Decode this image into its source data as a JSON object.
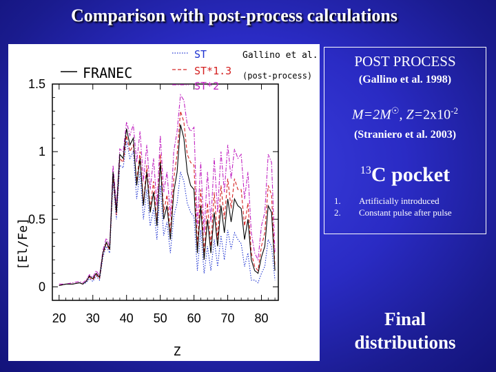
{
  "slide": {
    "title": "Comparison with post-process calculations",
    "info": {
      "post_process": "POST PROCESS",
      "post_process_ref": "(Gallino et al. 1998)",
      "model_mass": "M=2M",
      "sun_symbol": "☉",
      "model_z_label": ", Z=",
      "model_z_value": "2x10",
      "model_z_exp": "-2",
      "model_ref": "(Straniero et al. 2003)",
      "pocket_sup": "13",
      "pocket_label": "C  pocket",
      "items": [
        {
          "num": "1.",
          "text": "Artificially introduced"
        },
        {
          "num": "2.",
          "text": "Constant pulse after pulse"
        }
      ]
    },
    "final_line1": "Final",
    "final_line2": "distributions"
  },
  "chart_data": {
    "type": "line",
    "xlabel": "Z",
    "ylabel": "[El/Fe]",
    "xlim": [
      18,
      85
    ],
    "ylim": [
      -0.1,
      1.5
    ],
    "xticks": [
      20,
      30,
      40,
      50,
      60,
      70,
      80
    ],
    "yticks": [
      0,
      0.5,
      1,
      1.5
    ],
    "ytick_labels": [
      "0",
      "0.5",
      "1",
      "1.5"
    ],
    "legend": {
      "franec_label": "FRANEC",
      "group_label": "Gallino et al.",
      "group_sub": "(post-process)",
      "placement": "top"
    },
    "series": [
      {
        "name": "FRANEC",
        "color": "#000000",
        "dash": "solid",
        "points": [
          [
            20,
            0.01
          ],
          [
            22,
            0.02
          ],
          [
            24,
            0.02
          ],
          [
            26,
            0.03
          ],
          [
            27,
            0.02
          ],
          [
            28,
            0.04
          ],
          [
            29,
            0.08
          ],
          [
            30,
            0.06
          ],
          [
            31,
            0.1
          ],
          [
            32,
            0.07
          ],
          [
            33,
            0.25
          ],
          [
            34,
            0.33
          ],
          [
            35,
            0.28
          ],
          [
            36,
            0.85
          ],
          [
            37,
            0.55
          ],
          [
            38,
            0.98
          ],
          [
            39,
            0.95
          ],
          [
            40,
            1.17
          ],
          [
            41,
            1.05
          ],
          [
            42,
            1.1
          ],
          [
            43,
            0.75
          ],
          [
            44,
            0.95
          ],
          [
            45,
            0.6
          ],
          [
            46,
            0.85
          ],
          [
            47,
            0.55
          ],
          [
            48,
            0.7
          ],
          [
            49,
            0.45
          ],
          [
            50,
            0.92
          ],
          [
            51,
            0.5
          ],
          [
            52,
            0.6
          ],
          [
            53,
            0.35
          ],
          [
            54,
            0.7
          ],
          [
            55,
            0.85
          ],
          [
            56,
            1.2
          ],
          [
            57,
            1.1
          ],
          [
            58,
            0.85
          ],
          [
            59,
            0.75
          ],
          [
            60,
            0.72
          ],
          [
            61,
            0.25
          ],
          [
            62,
            0.6
          ],
          [
            63,
            0.2
          ],
          [
            64,
            0.5
          ],
          [
            65,
            0.25
          ],
          [
            66,
            0.55
          ],
          [
            67,
            0.3
          ],
          [
            68,
            0.6
          ],
          [
            69,
            0.4
          ],
          [
            70,
            0.65
          ],
          [
            71,
            0.48
          ],
          [
            72,
            0.65
          ],
          [
            73,
            0.6
          ],
          [
            74,
            0.58
          ],
          [
            75,
            0.35
          ],
          [
            76,
            0.5
          ],
          [
            77,
            0.2
          ],
          [
            78,
            0.12
          ],
          [
            79,
            0.1
          ],
          [
            80,
            0.22
          ],
          [
            81,
            0.3
          ],
          [
            82,
            0.6
          ],
          [
            83,
            0.55
          ],
          [
            84,
            0.12
          ]
        ]
      },
      {
        "name": "ST",
        "color": "#1a2fd0",
        "dash": "dot",
        "points": [
          [
            20,
            0.01
          ],
          [
            22,
            0.02
          ],
          [
            24,
            0.02
          ],
          [
            26,
            0.03
          ],
          [
            27,
            0.02
          ],
          [
            28,
            0.03
          ],
          [
            29,
            0.06
          ],
          [
            30,
            0.04
          ],
          [
            31,
            0.08
          ],
          [
            32,
            0.05
          ],
          [
            33,
            0.22
          ],
          [
            34,
            0.3
          ],
          [
            35,
            0.25
          ],
          [
            36,
            0.78
          ],
          [
            37,
            0.5
          ],
          [
            38,
            0.9
          ],
          [
            39,
            0.88
          ],
          [
            40,
            1.08
          ],
          [
            41,
            0.95
          ],
          [
            42,
            1.0
          ],
          [
            43,
            0.65
          ],
          [
            44,
            0.85
          ],
          [
            45,
            0.5
          ],
          [
            46,
            0.72
          ],
          [
            47,
            0.45
          ],
          [
            48,
            0.58
          ],
          [
            49,
            0.35
          ],
          [
            50,
            0.75
          ],
          [
            51,
            0.38
          ],
          [
            52,
            0.48
          ],
          [
            53,
            0.25
          ],
          [
            54,
            0.52
          ],
          [
            55,
            0.62
          ],
          [
            56,
            0.85
          ],
          [
            57,
            0.78
          ],
          [
            58,
            0.62
          ],
          [
            59,
            0.55
          ],
          [
            60,
            0.52
          ],
          [
            61,
            0.12
          ],
          [
            62,
            0.42
          ],
          [
            63,
            0.1
          ],
          [
            64,
            0.3
          ],
          [
            65,
            0.12
          ],
          [
            66,
            0.35
          ],
          [
            67,
            0.15
          ],
          [
            68,
            0.38
          ],
          [
            69,
            0.2
          ],
          [
            70,
            0.42
          ],
          [
            71,
            0.28
          ],
          [
            72,
            0.4
          ],
          [
            73,
            0.35
          ],
          [
            74,
            0.32
          ],
          [
            75,
            0.15
          ],
          [
            76,
            0.25
          ],
          [
            77,
            0.05
          ],
          [
            78,
            0.05
          ],
          [
            79,
            0.03
          ],
          [
            80,
            0.1
          ],
          [
            81,
            0.15
          ],
          [
            82,
            0.35
          ],
          [
            83,
            0.3
          ],
          [
            84,
            0.05
          ]
        ]
      },
      {
        "name": "ST*1.3",
        "color": "#d42020",
        "dash": "dash",
        "points": [
          [
            20,
            0.01
          ],
          [
            22,
            0.02
          ],
          [
            24,
            0.02
          ],
          [
            26,
            0.03
          ],
          [
            27,
            0.02
          ],
          [
            28,
            0.04
          ],
          [
            29,
            0.07
          ],
          [
            30,
            0.05
          ],
          [
            31,
            0.09
          ],
          [
            32,
            0.06
          ],
          [
            33,
            0.24
          ],
          [
            34,
            0.32
          ],
          [
            35,
            0.27
          ],
          [
            36,
            0.82
          ],
          [
            37,
            0.53
          ],
          [
            38,
            0.95
          ],
          [
            39,
            0.92
          ],
          [
            40,
            1.12
          ],
          [
            41,
            1.0
          ],
          [
            42,
            1.05
          ],
          [
            43,
            0.78
          ],
          [
            44,
            1.0
          ],
          [
            45,
            0.62
          ],
          [
            46,
            0.9
          ],
          [
            47,
            0.58
          ],
          [
            48,
            0.78
          ],
          [
            49,
            0.48
          ],
          [
            50,
            0.98
          ],
          [
            51,
            0.55
          ],
          [
            52,
            0.68
          ],
          [
            53,
            0.4
          ],
          [
            54,
            0.8
          ],
          [
            55,
            0.98
          ],
          [
            56,
            1.3
          ],
          [
            57,
            1.22
          ],
          [
            58,
            0.98
          ],
          [
            59,
            0.92
          ],
          [
            60,
            0.9
          ],
          [
            61,
            0.3
          ],
          [
            62,
            0.72
          ],
          [
            63,
            0.25
          ],
          [
            64,
            0.62
          ],
          [
            65,
            0.3
          ],
          [
            66,
            0.7
          ],
          [
            67,
            0.35
          ],
          [
            68,
            0.75
          ],
          [
            69,
            0.5
          ],
          [
            70,
            0.8
          ],
          [
            71,
            0.58
          ],
          [
            72,
            0.8
          ],
          [
            73,
            0.72
          ],
          [
            74,
            0.72
          ],
          [
            75,
            0.45
          ],
          [
            76,
            0.62
          ],
          [
            77,
            0.25
          ],
          [
            78,
            0.15
          ],
          [
            79,
            0.12
          ],
          [
            80,
            0.3
          ],
          [
            81,
            0.4
          ],
          [
            82,
            0.75
          ],
          [
            83,
            0.68
          ],
          [
            84,
            0.15
          ]
        ]
      },
      {
        "name": "ST*2",
        "color": "#c020c0",
        "dash": "dashdot",
        "points": [
          [
            20,
            0.02
          ],
          [
            22,
            0.02
          ],
          [
            24,
            0.03
          ],
          [
            26,
            0.04
          ],
          [
            27,
            0.03
          ],
          [
            28,
            0.05
          ],
          [
            29,
            0.09
          ],
          [
            30,
            0.07
          ],
          [
            31,
            0.12
          ],
          [
            32,
            0.08
          ],
          [
            33,
            0.27
          ],
          [
            34,
            0.36
          ],
          [
            35,
            0.3
          ],
          [
            36,
            0.9
          ],
          [
            37,
            0.6
          ],
          [
            38,
            1.02
          ],
          [
            39,
            1.0
          ],
          [
            40,
            1.22
          ],
          [
            41,
            1.12
          ],
          [
            42,
            1.2
          ],
          [
            43,
            0.92
          ],
          [
            44,
            1.15
          ],
          [
            45,
            0.78
          ],
          [
            46,
            1.05
          ],
          [
            47,
            0.72
          ],
          [
            48,
            0.95
          ],
          [
            49,
            0.6
          ],
          [
            50,
            1.12
          ],
          [
            51,
            0.7
          ],
          [
            52,
            0.85
          ],
          [
            53,
            0.52
          ],
          [
            54,
            1.0
          ],
          [
            55,
            1.15
          ],
          [
            56,
            1.42
          ],
          [
            57,
            1.38
          ],
          [
            58,
            1.2
          ],
          [
            59,
            1.15
          ],
          [
            60,
            1.18
          ],
          [
            61,
            0.45
          ],
          [
            62,
            0.92
          ],
          [
            63,
            0.4
          ],
          [
            64,
            0.85
          ],
          [
            65,
            0.48
          ],
          [
            66,
            0.95
          ],
          [
            67,
            0.55
          ],
          [
            68,
            1.0
          ],
          [
            69,
            0.7
          ],
          [
            70,
            1.05
          ],
          [
            71,
            0.8
          ],
          [
            72,
            1.02
          ],
          [
            73,
            0.95
          ],
          [
            74,
            0.98
          ],
          [
            75,
            0.65
          ],
          [
            76,
            0.85
          ],
          [
            77,
            0.4
          ],
          [
            78,
            0.25
          ],
          [
            79,
            0.2
          ],
          [
            80,
            0.45
          ],
          [
            81,
            0.55
          ],
          [
            82,
            0.98
          ],
          [
            83,
            0.92
          ],
          [
            84,
            0.25
          ]
        ]
      }
    ]
  }
}
